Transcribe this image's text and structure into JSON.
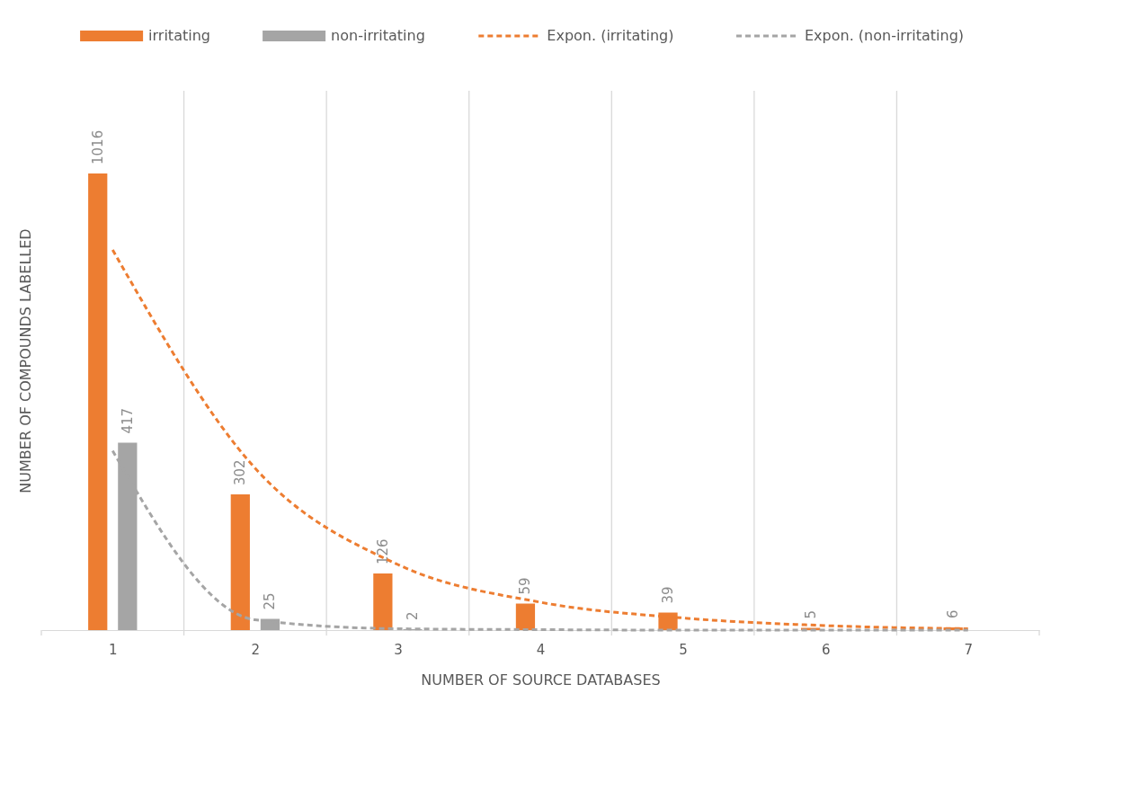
{
  "chart_data": {
    "type": "bar",
    "xlabel": "NUMBER OF SOURCE DATABASES",
    "ylabel": "NUMBER OF COMPOUNDS LABELLED",
    "categories": [
      "1",
      "2",
      "3",
      "4",
      "5",
      "6",
      "7"
    ],
    "series": [
      {
        "name": "irritating",
        "color": "#ed7d31",
        "values": [
          1016,
          302,
          126,
          59,
          39,
          5,
          6
        ],
        "value_labels": [
          "1016",
          "302",
          "126",
          "59",
          "39",
          "5",
          "6"
        ]
      },
      {
        "name": "non-irritating",
        "color": "#a5a5a5",
        "values": [
          417,
          25,
          2,
          null,
          null,
          null,
          null
        ],
        "value_labels": [
          "417",
          "25",
          "2",
          null,
          null,
          null,
          null
        ]
      },
      {
        "name": "Expon. (irritating)",
        "type": "line",
        "line_style": "dashed",
        "color": "#ed7d31",
        "values": [
          846,
          360,
          146,
          62,
          27,
          10,
          3
        ]
      },
      {
        "name": "Expon. (non-irritating)",
        "type": "line",
        "line_style": "dashed",
        "color": "#a5a5a5",
        "values": [
          399,
          23,
          3,
          1,
          0,
          0,
          0
        ]
      }
    ],
    "ylim": [
      0,
      1200
    ],
    "grid": "x",
    "legend": "top",
    "tick_labels": "x"
  }
}
